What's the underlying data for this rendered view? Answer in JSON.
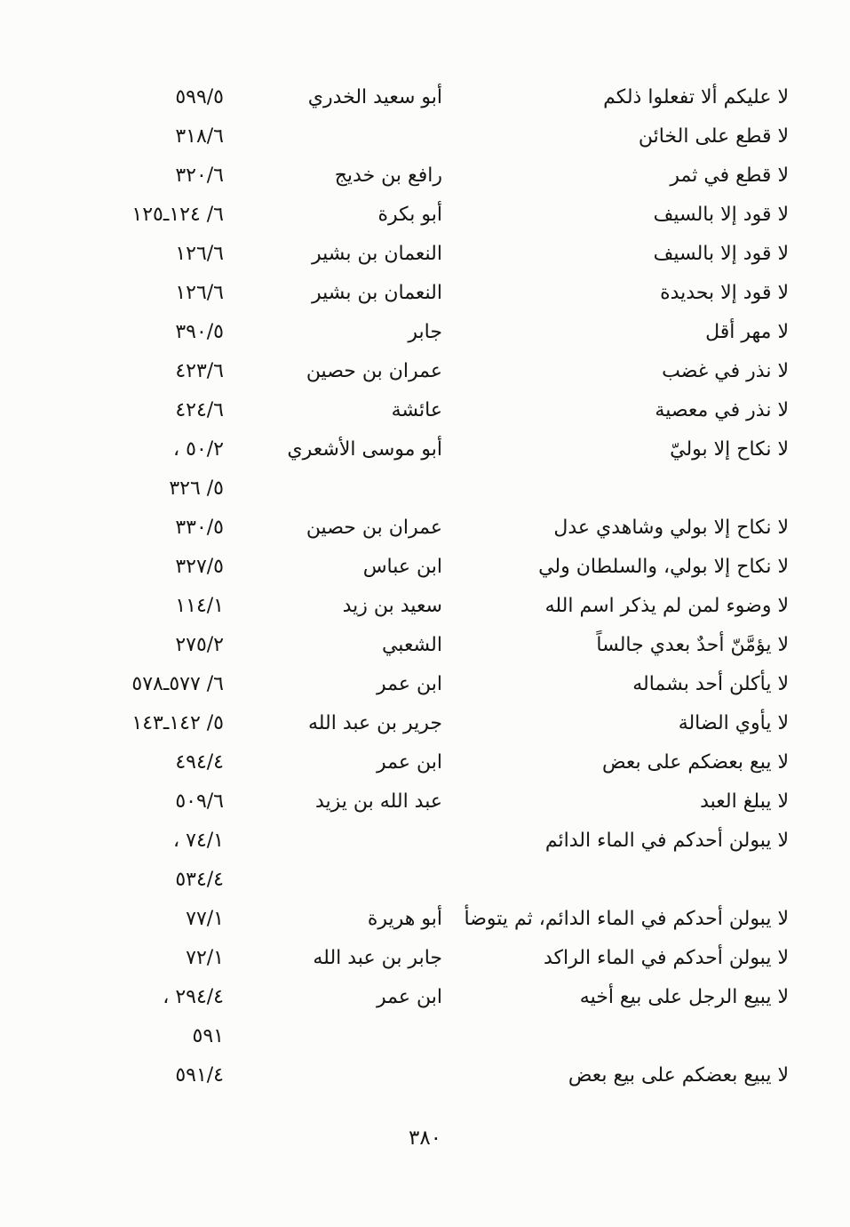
{
  "page": {
    "paper_color": "#fcfcfa",
    "ink_color": "#151515",
    "number_label": "٣٨٠"
  },
  "index_rows": [
    {
      "text": "لا عليكم ألا تفعلوا ذلكم",
      "narrator": "أبو سعيد الخدري",
      "ref": "٥٩٩/٥"
    },
    {
      "text": "لا قطع على الخائن",
      "narrator": "",
      "ref": "٣١٨/٦"
    },
    {
      "text": "لا قطع في ثمر",
      "narrator": "رافع بن خديج",
      "ref": "٣٢٠/٦"
    },
    {
      "text": "لا قود إلا بالسيف",
      "narrator": "أبو بكرة",
      "ref": "١٢٥ـ١٢٤ /٦"
    },
    {
      "text": "لا قود إلا بالسيف",
      "narrator": "النعمان بن بشير",
      "ref": "١٢٦/٦"
    },
    {
      "text": "لا قود إلا بحديدة",
      "narrator": "النعمان بن بشير",
      "ref": "١٢٦/٦"
    },
    {
      "text": "لا مهر أقل",
      "narrator": "جابر",
      "ref": "٣٩٠/٥"
    },
    {
      "text": "لا نذر في غضب",
      "narrator": "عمران بن حصين",
      "ref": "٤٢٣/٦"
    },
    {
      "text": "لا نذر في معصية",
      "narrator": "عائشة",
      "ref": "٤٢٤/٦"
    },
    {
      "text": "لا نكاح إلا بوليّ",
      "narrator": "أبو موسى الأشعري",
      "ref": "، ٥٠/٢"
    },
    {
      "text": "",
      "narrator": "",
      "ref": "٣٢٦ /٥"
    },
    {
      "text": "لا نكاح إلا بولي وشاهدي عدل",
      "narrator": "عمران بن حصين",
      "ref": "٣٣٠/٥"
    },
    {
      "text": "لا نكاح إلا بولي، والسلطان ولي",
      "narrator": "ابن عباس",
      "ref": "٣٢٧/٥"
    },
    {
      "text": "لا وضوء لمن لم يذكر اسم الله",
      "narrator": "سعيد بن زيد",
      "ref": "١١٤/١"
    },
    {
      "text": "لا يؤمَّنّ أحدٌ بعدي جالساً",
      "narrator": "الشعبي",
      "ref": "٢٧٥/٢"
    },
    {
      "text": "لا يأكلن أحد بشماله",
      "narrator": "ابن عمر",
      "ref": "٥٧٨ـ٥٧٧ /٦"
    },
    {
      "text": "لا يأوي الضالة",
      "narrator": "جرير بن عبد الله",
      "ref": "١٤٣ـ١٤٢ /٥"
    },
    {
      "text": "لا يبع بعضكم على بعض",
      "narrator": "ابن عمر",
      "ref": "٤٩٤/٤"
    },
    {
      "text": "لا يبلغ العبد",
      "narrator": "عبد الله بن يزيد",
      "ref": "٥٠٩/٦"
    },
    {
      "text": "لا يبولن أحدكم في الماء الدائم",
      "narrator": "",
      "ref": "، ٧٤/١"
    },
    {
      "text": "",
      "narrator": "",
      "ref": "٥٣٤/٤"
    },
    {
      "text": "لا يبولن أحدكم في الماء الدائم، ثم يتوضأ",
      "narrator": "أبو هريرة",
      "ref": "٧٧/١"
    },
    {
      "text": "لا يبولن أحدكم في الماء الراكد",
      "narrator": "جابر بن عبد الله",
      "ref": "٧٢/١"
    },
    {
      "text": "لا يبيع الرجل على بيع أخيه",
      "narrator": "ابن عمر",
      "ref": "، ٢٩٤/٤"
    },
    {
      "text": "",
      "narrator": "",
      "ref": "٥٩١"
    },
    {
      "text": "لا يبيع بعضكم على بيع بعض",
      "narrator": "",
      "ref": "٥٩١/٤"
    }
  ]
}
